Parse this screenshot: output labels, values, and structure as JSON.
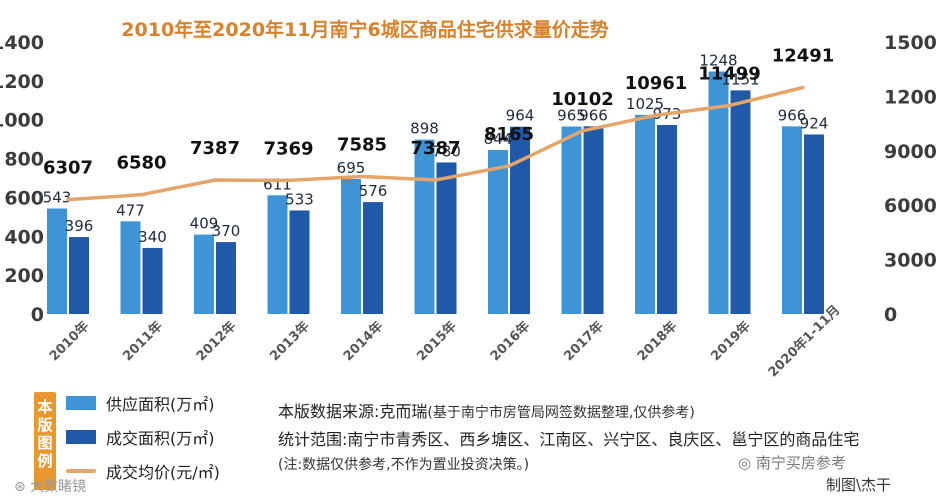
{
  "title": "2010年至2020年11月南宁6城区商品住宅供求量价走势",
  "colors": {
    "supply": "#3f94d6",
    "deal": "#1f59a8",
    "price": "#e5a468",
    "title": "#d9812b",
    "axis_text": "#3c3c3c"
  },
  "chart_data": {
    "type": "bar",
    "categories": [
      "2010年",
      "2011年",
      "2012年",
      "2013年",
      "2014年",
      "2015年",
      "2016年",
      "2017年",
      "2018年",
      "2019年",
      "2020年1-11月"
    ],
    "series": [
      {
        "name": "供应面积(万㎡)",
        "values": [
          543,
          477,
          409,
          611,
          695,
          898,
          844,
          965,
          1025,
          1248,
          966
        ]
      },
      {
        "name": "成交面积(万㎡)",
        "values": [
          396,
          340,
          370,
          533,
          576,
          780,
          964,
          966,
          973,
          1151,
          924
        ]
      },
      {
        "name": "成交均价(元/㎡)",
        "type": "line",
        "axis": "right",
        "values": [
          6307,
          6580,
          7387,
          7369,
          7585,
          7387,
          8165,
          10102,
          10961,
          11499,
          12491
        ]
      }
    ],
    "y_left": {
      "min": 0,
      "max": 1400,
      "ticks": [
        "0",
        "200",
        "400",
        "600",
        "800",
        "1000",
        "1200",
        "1400"
      ]
    },
    "y_right": {
      "min": 0,
      "max": 15000,
      "ticks": [
        "0",
        "3000",
        "6000",
        "9000",
        "12000",
        "15000"
      ]
    },
    "grid": false,
    "legend_position": "bottom-left"
  },
  "legend": {
    "tag": "本版图例",
    "supply": "供应面积(万㎡)",
    "deal": "成交面积(万㎡)",
    "price": "成交均价(元/㎡)"
  },
  "info": {
    "source_label": "本版数据来源:克而瑞",
    "source_note": "(基于南宁市房管局网签数据整理,仅供参考)",
    "scope": "统计范围:南宁市青秀区、西乡塘区、江南区、兴宁区、良庆区、邕宁区的商品住宅",
    "note": "(注:数据仅供参考,不作为置业投资决策。)"
  },
  "watermark_left": "大数睹镜",
  "watermark_right": "南宁买房参考",
  "credit": "制图\\杰干"
}
